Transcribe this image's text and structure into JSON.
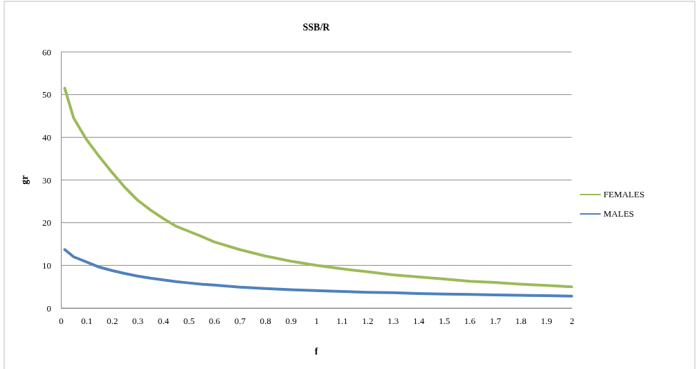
{
  "chart_data": {
    "type": "line",
    "title": "SSB/R",
    "xlabel": "f",
    "ylabel": "gr",
    "xlim": [
      0,
      2
    ],
    "xticks": [
      0,
      0.1,
      0.2,
      0.3,
      0.4,
      0.5,
      0.6,
      0.7,
      0.8,
      0.9,
      1,
      1.1,
      1.2,
      1.3,
      1.4,
      1.5,
      1.6,
      1.7,
      1.8,
      1.9,
      2
    ],
    "ylim": [
      0,
      60
    ],
    "yticks": [
      0,
      10,
      20,
      30,
      40,
      50,
      60
    ],
    "grid": "y",
    "legend": "right",
    "marker": "none",
    "line_style": "solid",
    "x": [
      0.015,
      0.05,
      0.1,
      0.15,
      0.2,
      0.25,
      0.3,
      0.35,
      0.4,
      0.45,
      0.5,
      0.55,
      0.6,
      0.7,
      0.8,
      0.9,
      1,
      1.1,
      1.2,
      1.3,
      1.4,
      1.5,
      1.6,
      1.7,
      1.8,
      1.9,
      2
    ],
    "series": [
      {
        "name": "FEMALES",
        "color": "#9bbb59",
        "values": [
          51.5,
          44.5,
          39.5,
          35.5,
          31.8,
          28.3,
          25.3,
          23,
          21,
          19.2,
          18,
          16.8,
          15.5,
          13.7,
          12.2,
          11,
          10,
          9.2,
          8.5,
          7.8,
          7.3,
          6.8,
          6.3,
          6,
          5.6,
          5.3,
          5
        ]
      },
      {
        "name": "MALES",
        "color": "#4f81bd",
        "values": [
          13.7,
          12,
          10.8,
          9.6,
          8.8,
          8.1,
          7.5,
          7,
          6.6,
          6.2,
          5.9,
          5.6,
          5.4,
          4.9,
          4.6,
          4.3,
          4.1,
          3.9,
          3.7,
          3.6,
          3.4,
          3.3,
          3.2,
          3.1,
          3,
          2.9,
          2.8
        ]
      }
    ]
  }
}
